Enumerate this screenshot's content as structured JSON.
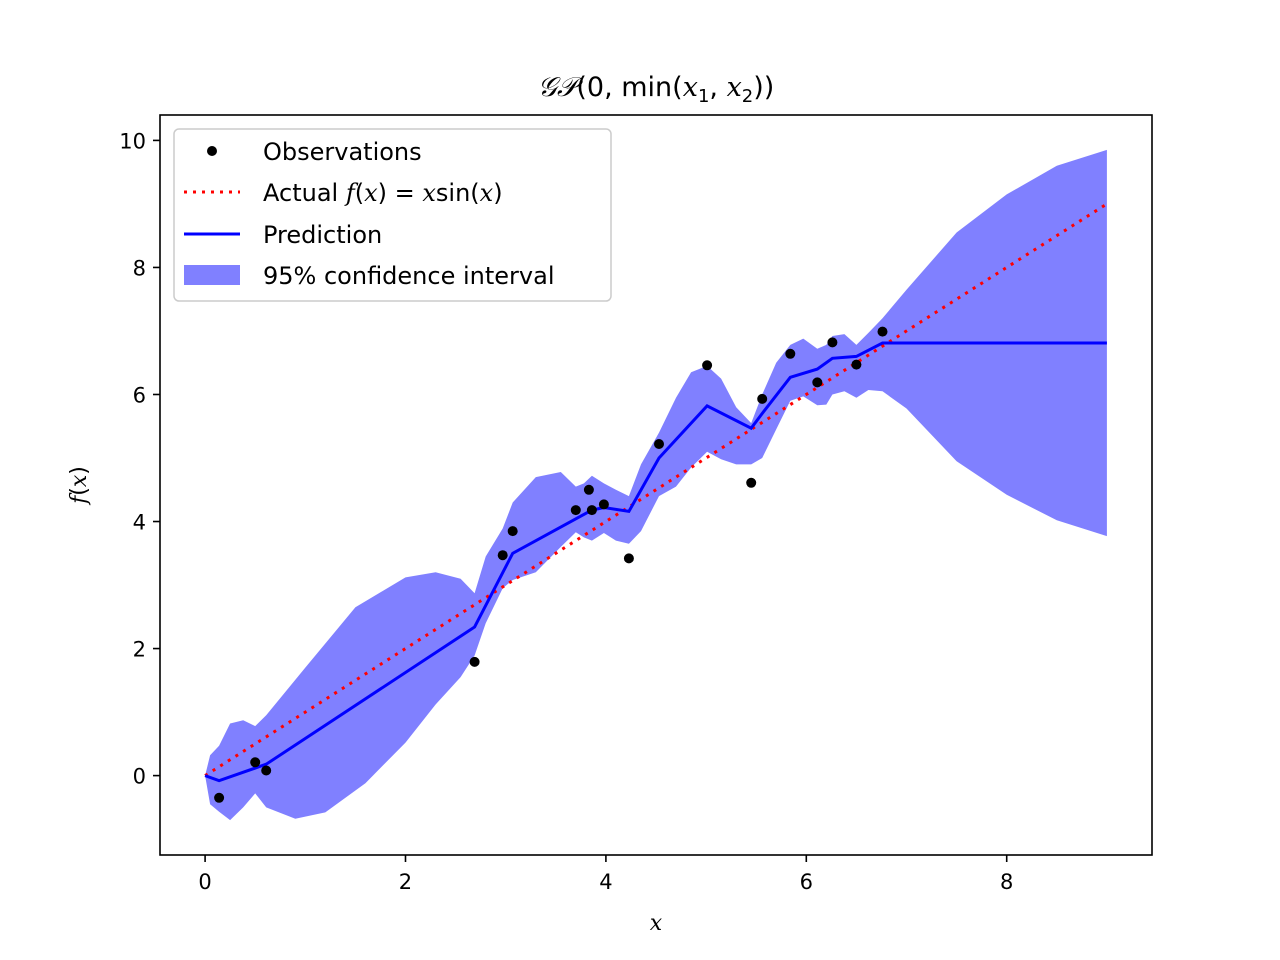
{
  "chart_data": {
    "type": "line",
    "title_parts": {
      "gp": "𝒢𝒫",
      "open": "(0, min(",
      "x1": "x",
      "sub1": "1",
      "comma": ", ",
      "x2": "x",
      "sub2": "2",
      "close": "))"
    },
    "xlabel": "x",
    "ylabel_parts": {
      "f": "f",
      "open": "(",
      "x": "x",
      "close": ")"
    },
    "xlim": [
      -0.45,
      9.45
    ],
    "ylim": [
      -1.25,
      10.4
    ],
    "xticks": [
      0,
      2,
      4,
      6,
      8
    ],
    "yticks": [
      0,
      2,
      4,
      6,
      8,
      10
    ],
    "grid": false,
    "legend": {
      "placement": "upper-left",
      "observations": "Observations",
      "actual_prefix": "Actual ",
      "actual_f": "f",
      "actual_open": "(",
      "actual_x": "x",
      "actual_eq": ") = ",
      "actual_x2": "x",
      "actual_sin": "sin(",
      "actual_x3": "x",
      "actual_close": ")",
      "prediction": "Prediction",
      "confidence": "95% confidence interval"
    },
    "colors": {
      "observations": "#000000",
      "actual": "#ff0000",
      "prediction": "#0000ff",
      "confidence": "#8080ff"
    },
    "observations": [
      [
        0.14,
        -0.35
      ],
      [
        0.5,
        0.21
      ],
      [
        0.61,
        0.08
      ],
      [
        2.69,
        1.79
      ],
      [
        2.97,
        3.47
      ],
      [
        3.07,
        3.85
      ],
      [
        3.7,
        4.18
      ],
      [
        3.83,
        4.5
      ],
      [
        3.86,
        4.18
      ],
      [
        3.98,
        4.27
      ],
      [
        4.23,
        3.42
      ],
      [
        4.53,
        5.22
      ],
      [
        5.01,
        6.46
      ],
      [
        5.45,
        4.61
      ],
      [
        5.56,
        5.93
      ],
      [
        5.84,
        6.64
      ],
      [
        6.11,
        6.19
      ],
      [
        6.26,
        6.82
      ],
      [
        6.5,
        6.47
      ],
      [
        6.76,
        6.99
      ]
    ],
    "actual_line": {
      "x": [
        0,
        9
      ],
      "y": [
        0,
        9
      ]
    },
    "prediction": {
      "x": [
        0,
        0.14,
        0.61,
        2.69,
        3.07,
        3.86,
        3.98,
        4.23,
        4.53,
        5.01,
        5.45,
        5.56,
        5.84,
        6.11,
        6.26,
        6.5,
        6.76,
        9.0
      ],
      "y": [
        0,
        -0.08,
        0.18,
        2.34,
        3.5,
        4.18,
        4.22,
        4.16,
        5.0,
        5.82,
        5.47,
        5.7,
        6.27,
        6.4,
        6.57,
        6.6,
        6.81,
        6.81
      ]
    },
    "confidence_upper": {
      "x": [
        0.0,
        0.05,
        0.14,
        0.25,
        0.38,
        0.5,
        0.61,
        1.0,
        1.5,
        2.0,
        2.3,
        2.55,
        2.69,
        2.8,
        2.97,
        3.07,
        3.3,
        3.55,
        3.7,
        3.78,
        3.86,
        3.98,
        4.1,
        4.23,
        4.35,
        4.53,
        4.7,
        4.85,
        5.01,
        5.15,
        5.3,
        5.45,
        5.56,
        5.7,
        5.84,
        5.97,
        6.11,
        6.2,
        6.26,
        6.38,
        6.5,
        6.62,
        6.76,
        7.0,
        7.5,
        8.0,
        8.5,
        9.0
      ],
      "y": [
        0.0,
        0.32,
        0.47,
        0.82,
        0.87,
        0.78,
        0.95,
        1.7,
        2.65,
        3.12,
        3.2,
        3.1,
        2.87,
        3.45,
        3.89,
        4.3,
        4.7,
        4.78,
        4.55,
        4.6,
        4.72,
        4.6,
        4.5,
        4.4,
        4.9,
        5.4,
        5.95,
        6.35,
        6.45,
        6.25,
        5.8,
        5.55,
        6.0,
        6.5,
        6.78,
        6.88,
        6.72,
        6.78,
        6.92,
        6.95,
        6.78,
        6.97,
        7.2,
        7.65,
        8.55,
        9.15,
        9.6,
        9.85
      ]
    },
    "confidence_lower": {
      "x": [
        0.0,
        0.05,
        0.14,
        0.25,
        0.38,
        0.5,
        0.61,
        0.9,
        1.2,
        1.6,
        2.0,
        2.3,
        2.55,
        2.69,
        2.8,
        2.97,
        3.07,
        3.3,
        3.55,
        3.7,
        3.78,
        3.86,
        3.98,
        4.1,
        4.23,
        4.35,
        4.53,
        4.7,
        4.85,
        5.01,
        5.15,
        5.3,
        5.45,
        5.56,
        5.7,
        5.84,
        5.97,
        6.11,
        6.2,
        6.26,
        6.38,
        6.5,
        6.62,
        6.76,
        7.0,
        7.5,
        8.0,
        8.5,
        9.0
      ],
      "y": [
        0.0,
        -0.45,
        -0.57,
        -0.7,
        -0.5,
        -0.28,
        -0.5,
        -0.68,
        -0.58,
        -0.12,
        0.52,
        1.12,
        1.55,
        1.89,
        2.4,
        2.95,
        3.08,
        3.2,
        3.6,
        3.83,
        3.75,
        3.7,
        3.82,
        3.7,
        3.65,
        3.85,
        4.4,
        4.55,
        4.85,
        5.1,
        4.98,
        4.9,
        4.9,
        5.0,
        5.45,
        5.9,
        5.97,
        5.83,
        5.84,
        6.0,
        6.05,
        5.95,
        6.07,
        6.05,
        5.78,
        4.95,
        4.42,
        4.02,
        3.77
      ]
    }
  }
}
